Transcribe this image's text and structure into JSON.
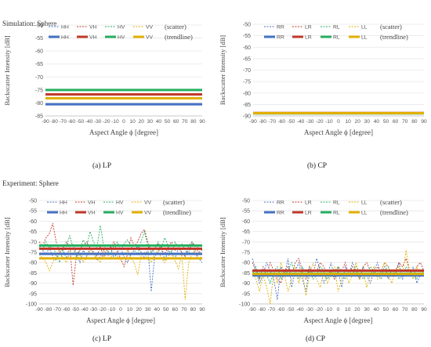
{
  "sections": {
    "simulation": "Simulation: Sphere",
    "experiment": "Experiment: Sphere"
  },
  "chart_data": [
    {
      "id": "a",
      "type": "line",
      "caption": "(a) LP",
      "xlabel": "Aspect Angle ϕ [degree]",
      "ylabel": "Backscatter Intensity [dB]",
      "ylim": [
        -85,
        -50
      ],
      "yticks": [
        -50,
        -55,
        -60,
        -65,
        -70,
        -75,
        -80,
        -85
      ],
      "xticks": [
        -90,
        -80,
        -70,
        -60,
        -50,
        -40,
        -30,
        -20,
        -10,
        0,
        10,
        20,
        30,
        40,
        50,
        60,
        70,
        80,
        90
      ],
      "legend": {
        "scatter_label": "(scatter)",
        "trend_label": "(trendline)",
        "position": "top-right"
      },
      "series": [
        {
          "name": "HH",
          "color": "#4472c4",
          "scatter": [],
          "trend": -80.5
        },
        {
          "name": "VH",
          "color": "#c0392b",
          "scatter": [],
          "trend": -76.7
        },
        {
          "name": "HV",
          "color": "#27ae60",
          "scatter": [],
          "trend": -75.0
        },
        {
          "name": "VV",
          "color": "#e1b000",
          "scatter": [],
          "trend": -78.2
        }
      ]
    },
    {
      "id": "b",
      "type": "line",
      "caption": "(b)  CP",
      "xlabel": "Aspect Angle ϕ [degree]",
      "ylabel": "Backscatter Intensity [dB]",
      "ylim": [
        -90,
        -50
      ],
      "yticks": [
        -50,
        -55,
        -60,
        -65,
        -70,
        -75,
        -80,
        -85,
        -90
      ],
      "xticks": [
        -90,
        -80,
        -70,
        -60,
        -50,
        -40,
        -30,
        -20,
        -10,
        0,
        10,
        20,
        30,
        40,
        50,
        60,
        70,
        80,
        90
      ],
      "legend": {
        "scatter_label": "(scatter)",
        "trend_label": "(trendline)",
        "position": "top-right"
      },
      "series": [
        {
          "name": "RR",
          "color": "#4472c4",
          "scatter": [],
          "trend": -88.8
        },
        {
          "name": "LR",
          "color": "#c0392b",
          "scatter": [],
          "trend": -88.7
        },
        {
          "name": "RL",
          "color": "#27ae60",
          "scatter": [],
          "trend": -88.9
        },
        {
          "name": "LL",
          "color": "#e1b000",
          "scatter": [],
          "trend": -88.8
        }
      ]
    },
    {
      "id": "c",
      "type": "line",
      "caption": "(c) LP",
      "xlabel": "Aspect Angle ϕ [degree]",
      "ylabel": "Backscatter Intensity [dB]",
      "ylim": [
        -100,
        -50
      ],
      "yticks": [
        -50,
        -55,
        -60,
        -65,
        -70,
        -75,
        -80,
        -85,
        -90,
        -95,
        -100
      ],
      "xticks": [
        -90,
        -80,
        -70,
        -60,
        -50,
        -40,
        -30,
        -20,
        -10,
        0,
        10,
        20,
        30,
        40,
        50,
        60,
        70,
        80,
        90
      ],
      "legend": {
        "scatter_label": "(scatter)",
        "trend_label": "(trendline)",
        "position": "top-right"
      },
      "series": [
        {
          "name": "HH",
          "color": "#4472c4",
          "scatter": [
            -72,
            -74,
            -76,
            -73,
            -77,
            -79,
            -75,
            -74,
            -78,
            -72,
            -71,
            -76,
            -80,
            -74,
            -77,
            -73,
            -75,
            -79,
            -77,
            -74,
            -76,
            -72,
            -78,
            -75,
            -73,
            -77,
            -80,
            -76,
            -74,
            -72,
            -75,
            -78,
            -73,
            -94,
            -77,
            -75,
            -72,
            -79,
            -74,
            -76,
            -78,
            -73,
            -75,
            -77,
            -74,
            -71,
            -76,
            -78,
            -80
          ],
          "trend": -75.8
        },
        {
          "name": "VH",
          "color": "#c0392b",
          "scatter": [
            -70,
            -72,
            -68,
            -66,
            -61,
            -70,
            -75,
            -73,
            -70,
            -72,
            -91,
            -76,
            -74,
            -72,
            -70,
            -73,
            -75,
            -77,
            -72,
            -78,
            -74,
            -73,
            -70,
            -75,
            -78,
            -82,
            -76,
            -68,
            -72,
            -70,
            -66,
            -64,
            -70,
            -75,
            -73,
            -71,
            -74,
            -76,
            -72,
            -70,
            -74,
            -73,
            -75,
            -77,
            -72,
            -70,
            -73,
            -75,
            -74
          ],
          "trend": -73.3
        },
        {
          "name": "HV",
          "color": "#27ae60",
          "scatter": [
            -72,
            -74,
            -70,
            -73,
            -72,
            -76,
            -80,
            -74,
            -72,
            -67,
            -73,
            -77,
            -74,
            -69,
            -72,
            -65,
            -70,
            -73,
            -62,
            -72,
            -74,
            -76,
            -72,
            -70,
            -74,
            -71,
            -69,
            -72,
            -74,
            -76,
            -70,
            -65,
            -72,
            -75,
            -74,
            -70,
            -73,
            -68,
            -72,
            -75,
            -70,
            -73,
            -71,
            -74,
            -76,
            -70,
            -72,
            -73,
            -74
          ],
          "trend": -71.8
        },
        {
          "name": "VV",
          "color": "#e1b000",
          "scatter": [
            -76,
            -78,
            -80,
            -84,
            -80,
            -76,
            -74,
            -78,
            -80,
            -75,
            -73,
            -78,
            -76,
            -80,
            -77,
            -74,
            -76,
            -78,
            -80,
            -74,
            -76,
            -78,
            -75,
            -77,
            -79,
            -76,
            -74,
            -78,
            -80,
            -86,
            -77,
            -75,
            -78,
            -80,
            -76,
            -74,
            -78,
            -80,
            -77,
            -75,
            -79,
            -83,
            -76,
            -98,
            -80,
            -76,
            -74,
            -78,
            -77
          ],
          "trend": -78.0
        }
      ]
    },
    {
      "id": "d",
      "type": "line",
      "caption": "(d)  CP",
      "xlabel": "Aspect Angle ϕ [degree]",
      "ylabel": "Backscatter Intensity [dB]",
      "ylim": [
        -100,
        -50
      ],
      "yticks": [
        -50,
        -55,
        -60,
        -65,
        -70,
        -75,
        -80,
        -85,
        -90,
        -95,
        -100
      ],
      "xticks": [
        -90,
        -80,
        -70,
        -60,
        -50,
        -40,
        -30,
        -20,
        -10,
        0,
        10,
        20,
        30,
        40,
        50,
        60,
        70,
        80,
        90
      ],
      "legend": {
        "scatter_label": "(scatter)",
        "trend_label": "(trendline)",
        "position": "top-right"
      },
      "series": [
        {
          "name": "RR",
          "color": "#4472c4",
          "scatter": [
            -78,
            -84,
            -90,
            -86,
            -80,
            -84,
            -88,
            -98,
            -82,
            -86,
            -78,
            -92,
            -84,
            -80,
            -88,
            -94,
            -82,
            -86,
            -78,
            -84,
            -90,
            -86,
            -80,
            -88,
            -84,
            -92,
            -82,
            -86,
            -80,
            -84,
            -88,
            -82,
            -86,
            -90,
            -84,
            -80,
            -86,
            -82,
            -88,
            -84,
            -86,
            -80,
            -88,
            -84,
            -86,
            -82,
            -90,
            -86,
            -84
          ],
          "trend": -86.2
        },
        {
          "name": "LR",
          "color": "#c0392b",
          "scatter": [
            -80,
            -84,
            -88,
            -82,
            -86,
            -80,
            -84,
            -88,
            -90,
            -84,
            -82,
            -86,
            -80,
            -78,
            -84,
            -88,
            -82,
            -86,
            -84,
            -80,
            -82,
            -86,
            -84,
            -88,
            -82,
            -84,
            -80,
            -86,
            -82,
            -84,
            -88,
            -82,
            -80,
            -84,
            -86,
            -82,
            -84,
            -80,
            -82,
            -86,
            -84,
            -80,
            -82,
            -78,
            -84,
            -86,
            -82,
            -80,
            -84
          ],
          "trend": -83.9
        },
        {
          "name": "RL",
          "color": "#27ae60",
          "scatter": [
            -86,
            -82,
            -88,
            -84,
            -86,
            -90,
            -84,
            -82,
            -88,
            -86,
            -84,
            -80,
            -86,
            -88,
            -82,
            -86,
            -84,
            -88,
            -86,
            -82,
            -84,
            -88,
            -86,
            -84,
            -82,
            -86,
            -88,
            -84,
            -86,
            -82,
            -84,
            -88,
            -86,
            -82,
            -84,
            -86,
            -88,
            -84,
            -82,
            -86,
            -84,
            -88,
            -86,
            -82,
            -84,
            -86,
            -88,
            -84,
            -86
          ],
          "trend": -85.3
        },
        {
          "name": "LL",
          "color": "#e1b000",
          "scatter": [
            -84,
            -88,
            -94,
            -86,
            -92,
            -100,
            -84,
            -90,
            -80,
            -86,
            -94,
            -88,
            -82,
            -90,
            -84,
            -96,
            -86,
            -80,
            -88,
            -92,
            -84,
            -90,
            -86,
            -82,
            -94,
            -88,
            -84,
            -90,
            -86,
            -80,
            -88,
            -84,
            -92,
            -86,
            -82,
            -88,
            -84,
            -80,
            -86,
            -90,
            -84,
            -82,
            -86,
            -74,
            -84,
            -88,
            -82,
            -86,
            -84
          ],
          "trend": -85.5
        }
      ]
    }
  ]
}
